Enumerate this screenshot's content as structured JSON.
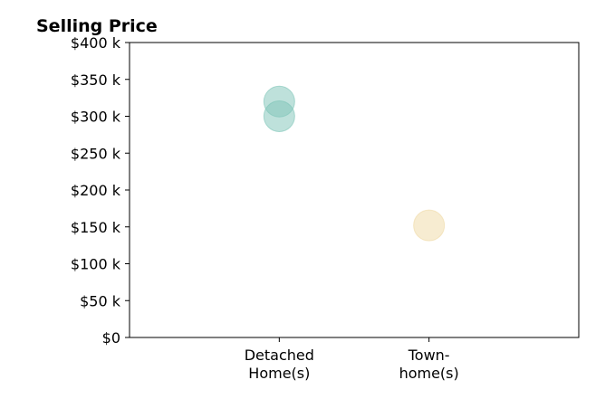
{
  "chart_data": {
    "type": "scatter",
    "title": "Selling Price",
    "xlabel": "",
    "ylabel": "",
    "categories": [
      [
        "Detached",
        "Home(s)"
      ],
      [
        "Town-",
        "home(s)"
      ]
    ],
    "y_ticks": [
      "$0",
      "$50 k",
      "$100 k",
      "$150 k",
      "$200 k",
      "$250 k",
      "$300 k",
      "$350 k",
      "$400 k"
    ],
    "ylim": [
      0,
      400000
    ],
    "xlim": [
      -1,
      2
    ],
    "grid": false,
    "points": [
      {
        "category": 0,
        "y": 320000,
        "color": "#7dc4b8"
      },
      {
        "category": 0,
        "y": 300000,
        "color": "#7dc4b8"
      },
      {
        "category": 1,
        "y": 152000,
        "color": "#efd9a4"
      }
    ]
  }
}
